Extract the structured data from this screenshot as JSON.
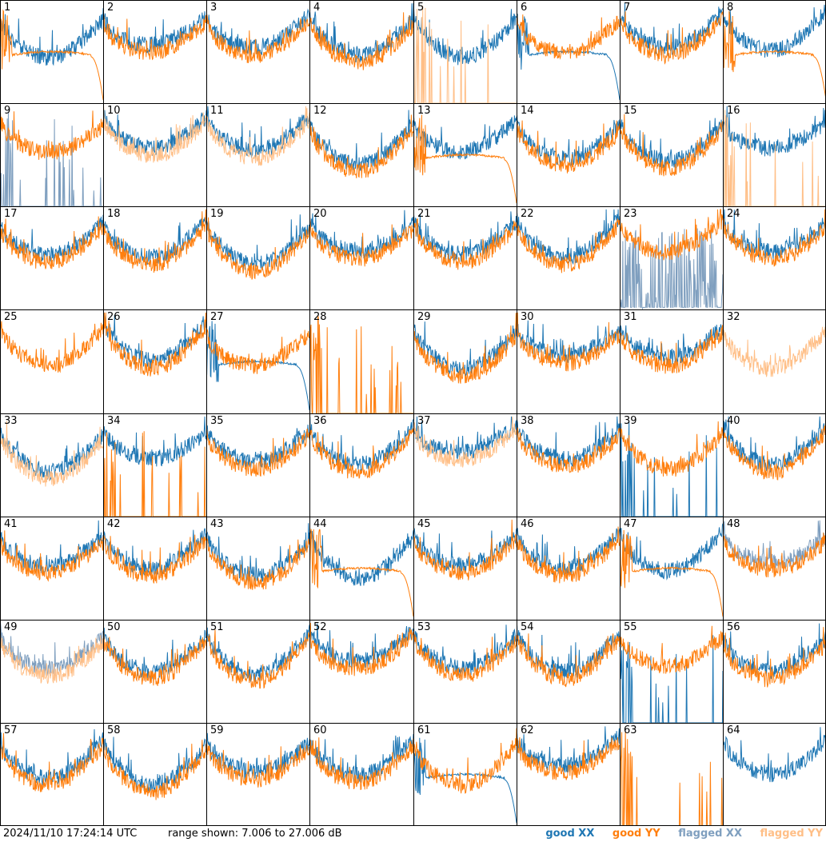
{
  "chart_data": {
    "type": "line",
    "layout": "small-multiples 8x8",
    "panel_labels": [
      "1",
      "2",
      "3",
      "4",
      "5",
      "6",
      "7",
      "8",
      "9",
      "10",
      "11",
      "12",
      "13",
      "14",
      "15",
      "16",
      "17",
      "18",
      "19",
      "20",
      "21",
      "22",
      "23",
      "24",
      "25",
      "26",
      "27",
      "28",
      "29",
      "30",
      "31",
      "32",
      "33",
      "34",
      "35",
      "36",
      "37",
      "38",
      "39",
      "40",
      "41",
      "42",
      "43",
      "44",
      "45",
      "46",
      "47",
      "48",
      "49",
      "50",
      "51",
      "52",
      "53",
      "54",
      "55",
      "56",
      "57",
      "58",
      "59",
      "60",
      "61",
      "62",
      "63",
      "64"
    ],
    "y_range_db": [
      7.006,
      27.006
    ],
    "series": [
      {
        "name": "good XX",
        "color": "#1f77b4"
      },
      {
        "name": "good YY",
        "color": "#ff7f0e"
      },
      {
        "name": "flagged XX",
        "color": "#7f9fbf"
      },
      {
        "name": "flagged YY",
        "color": "#ffbf87"
      }
    ],
    "panels": [
      {
        "id": "1",
        "xx": "normal",
        "yy": "dropout"
      },
      {
        "id": "2",
        "xx": "normal",
        "yy": "normal"
      },
      {
        "id": "3",
        "xx": "normal",
        "yy": "normal"
      },
      {
        "id": "4",
        "xx": "normal",
        "yy": "normal"
      },
      {
        "id": "5",
        "xx": "normal",
        "yy": "spikes",
        "yy_flagged": true
      },
      {
        "id": "6",
        "xx": "dropout",
        "yy": "normal"
      },
      {
        "id": "7",
        "xx": "normal",
        "yy": "normal"
      },
      {
        "id": "8",
        "xx": "normal",
        "yy": "dropout"
      },
      {
        "id": "9",
        "xx": "spikes",
        "yy": "normal",
        "xx_flagged": true
      },
      {
        "id": "10",
        "xx": "normal",
        "yy": "normal",
        "yy_flagged": true
      },
      {
        "id": "11",
        "xx": "normal",
        "yy": "normal",
        "yy_flagged": true
      },
      {
        "id": "12",
        "xx": "normal",
        "yy": "normal"
      },
      {
        "id": "13",
        "xx": "normal",
        "yy": "dropout"
      },
      {
        "id": "14",
        "xx": "normal",
        "yy": "normal"
      },
      {
        "id": "15",
        "xx": "normal",
        "yy": "normal"
      },
      {
        "id": "16",
        "xx": "normal",
        "yy": "spikes",
        "yy_flagged": true
      },
      {
        "id": "17",
        "xx": "normal",
        "yy": "normal"
      },
      {
        "id": "18",
        "xx": "normal",
        "yy": "normal"
      },
      {
        "id": "19",
        "xx": "normal",
        "yy": "normal"
      },
      {
        "id": "20",
        "xx": "normal",
        "yy": "normal"
      },
      {
        "id": "21",
        "xx": "normal",
        "yy": "normal"
      },
      {
        "id": "22",
        "xx": "normal",
        "yy": "normal"
      },
      {
        "id": "23",
        "xx": "noise",
        "yy": "normal",
        "xx_flagged": true
      },
      {
        "id": "24",
        "xx": "normal",
        "yy": "normal"
      },
      {
        "id": "25",
        "xx": "none",
        "yy": "normal"
      },
      {
        "id": "26",
        "xx": "normal",
        "yy": "normal"
      },
      {
        "id": "27",
        "xx": "dropout",
        "yy": "normal"
      },
      {
        "id": "28",
        "xx": "none",
        "yy": "spikes"
      },
      {
        "id": "29",
        "xx": "normal",
        "yy": "normal"
      },
      {
        "id": "30",
        "xx": "normal",
        "yy": "normal"
      },
      {
        "id": "31",
        "xx": "normal",
        "yy": "normal"
      },
      {
        "id": "32",
        "xx": "none",
        "yy": "normal",
        "yy_flagged": true
      },
      {
        "id": "33",
        "xx": "normal",
        "yy": "normal",
        "yy_flagged": true
      },
      {
        "id": "34",
        "xx": "normal",
        "yy": "spikes"
      },
      {
        "id": "35",
        "xx": "normal",
        "yy": "normal"
      },
      {
        "id": "36",
        "xx": "normal",
        "yy": "normal"
      },
      {
        "id": "37",
        "xx": "normal",
        "yy": "normal",
        "yy_flagged": true
      },
      {
        "id": "38",
        "xx": "normal",
        "yy": "normal"
      },
      {
        "id": "39",
        "xx": "spikes",
        "yy": "normal"
      },
      {
        "id": "40",
        "xx": "normal",
        "yy": "normal"
      },
      {
        "id": "41",
        "xx": "normal",
        "yy": "normal"
      },
      {
        "id": "42",
        "xx": "normal",
        "yy": "normal"
      },
      {
        "id": "43",
        "xx": "normal",
        "yy": "normal"
      },
      {
        "id": "44",
        "xx": "normal",
        "yy": "dropout"
      },
      {
        "id": "45",
        "xx": "normal",
        "yy": "normal"
      },
      {
        "id": "46",
        "xx": "normal",
        "yy": "normal"
      },
      {
        "id": "47",
        "xx": "normal",
        "yy": "dropout"
      },
      {
        "id": "48",
        "xx": "normal",
        "yy": "normal",
        "xx_flagged": true
      },
      {
        "id": "49",
        "xx": "normal",
        "yy": "normal",
        "xx_flagged": true,
        "yy_flagged": true
      },
      {
        "id": "50",
        "xx": "normal",
        "yy": "normal"
      },
      {
        "id": "51",
        "xx": "normal",
        "yy": "normal"
      },
      {
        "id": "52",
        "xx": "normal",
        "yy": "normal"
      },
      {
        "id": "53",
        "xx": "normal",
        "yy": "normal"
      },
      {
        "id": "54",
        "xx": "normal",
        "yy": "normal"
      },
      {
        "id": "55",
        "xx": "spikes",
        "yy": "normal"
      },
      {
        "id": "56",
        "xx": "normal",
        "yy": "normal"
      },
      {
        "id": "57",
        "xx": "normal",
        "yy": "normal"
      },
      {
        "id": "58",
        "xx": "normal",
        "yy": "normal"
      },
      {
        "id": "59",
        "xx": "normal",
        "yy": "normal"
      },
      {
        "id": "60",
        "xx": "normal",
        "yy": "normal"
      },
      {
        "id": "61",
        "xx": "dropout",
        "yy": "normal"
      },
      {
        "id": "62",
        "xx": "normal",
        "yy": "normal"
      },
      {
        "id": "63",
        "xx": "none",
        "yy": "spikes"
      },
      {
        "id": "64",
        "xx": "normal",
        "yy": "none"
      }
    ]
  },
  "footer": {
    "timestamp": "2024/11/10 17:24:14 UTC",
    "range_text": "range shown: 7.006 to 27.006 dB",
    "legend": [
      {
        "label": "good XX",
        "color": "#1f77b4"
      },
      {
        "label": "good YY",
        "color": "#ff7f0e"
      },
      {
        "label": "flagged XX",
        "color": "#7f9fbf"
      },
      {
        "label": "flagged YY",
        "color": "#ffbf87"
      }
    ]
  }
}
